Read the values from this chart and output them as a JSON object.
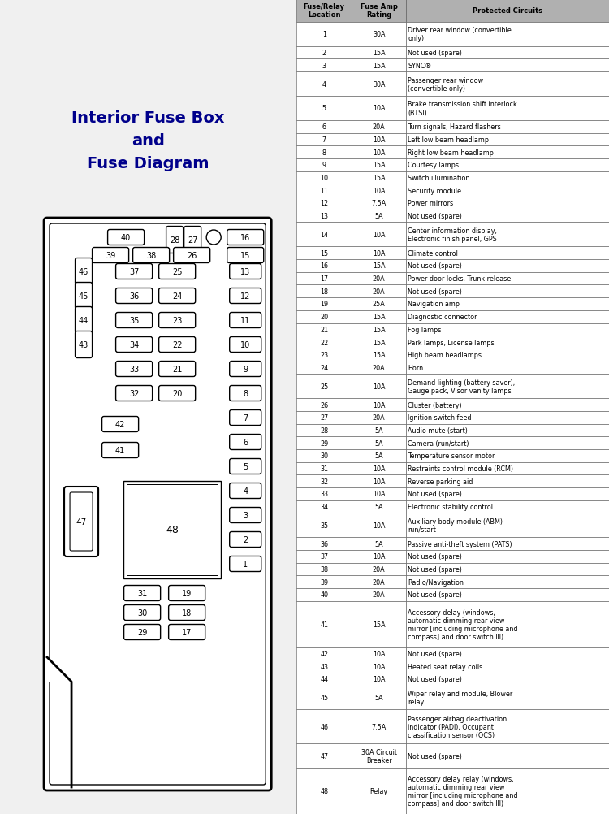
{
  "title": "Interior Fuse Box\nand\nFuse Diagram",
  "title_color": "#00008B",
  "bg_color": "#f0f0f0",
  "table_header": [
    "Fuse/Relay\nLocation",
    "Fuse Amp\nRating",
    "Protected Circuits"
  ],
  "header_bg": "#b0b0b0",
  "rows": [
    [
      "1",
      "30A",
      "Driver rear window (convertible\nonly)"
    ],
    [
      "2",
      "15A",
      "Not used (spare)"
    ],
    [
      "3",
      "15A",
      "SYNC®"
    ],
    [
      "4",
      "30A",
      "Passenger rear window\n(convertible only)"
    ],
    [
      "5",
      "10A",
      "Brake transmission shift interlock\n(BTSI)"
    ],
    [
      "6",
      "20A",
      "Turn signals, Hazard flashers"
    ],
    [
      "7",
      "10A",
      "Left low beam headlamp"
    ],
    [
      "8",
      "10A",
      "Right low beam headlamp"
    ],
    [
      "9",
      "15A",
      "Courtesy lamps"
    ],
    [
      "10",
      "15A",
      "Switch illumination"
    ],
    [
      "11",
      "10A",
      "Security module"
    ],
    [
      "12",
      "7.5A",
      "Power mirrors"
    ],
    [
      "13",
      "5A",
      "Not used (spare)"
    ],
    [
      "14",
      "10A",
      "Center information display,\nElectronic finish panel, GPS"
    ],
    [
      "15",
      "10A",
      "Climate control"
    ],
    [
      "16",
      "15A",
      "Not used (spare)"
    ],
    [
      "17",
      "20A",
      "Power door locks, Trunk release"
    ],
    [
      "18",
      "20A",
      "Not used (spare)"
    ],
    [
      "19",
      "25A",
      "Navigation amp"
    ],
    [
      "20",
      "15A",
      "Diagnostic connector"
    ],
    [
      "21",
      "15A",
      "Fog lamps"
    ],
    [
      "22",
      "15A",
      "Park lamps, License lamps"
    ],
    [
      "23",
      "15A",
      "High beam headlamps"
    ],
    [
      "24",
      "20A",
      "Horn"
    ],
    [
      "25",
      "10A",
      "Demand lighting (battery saver),\nGauge pack, Visor vanity lamps"
    ],
    [
      "26",
      "10A",
      "Cluster (battery)"
    ],
    [
      "27",
      "20A",
      "Ignition switch feed"
    ],
    [
      "28",
      "5A",
      "Audio mute (start)"
    ],
    [
      "29",
      "5A",
      "Camera (run/start)"
    ],
    [
      "30",
      "5A",
      "Temperature sensor motor"
    ],
    [
      "31",
      "10A",
      "Restraints control module (RCM)"
    ],
    [
      "32",
      "10A",
      "Reverse parking aid"
    ],
    [
      "33",
      "10A",
      "Not used (spare)"
    ],
    [
      "34",
      "5A",
      "Electronic stability control"
    ],
    [
      "35",
      "10A",
      "Auxiliary body module (ABM)\nrun/start"
    ],
    [
      "36",
      "5A",
      "Passive anti-theft system (PATS)"
    ],
    [
      "37",
      "10A",
      "Not used (spare)"
    ],
    [
      "38",
      "20A",
      "Not used (spare)"
    ],
    [
      "39",
      "20A",
      "Radio/Navigation"
    ],
    [
      "40",
      "20A",
      "Not used (spare)"
    ],
    [
      "41",
      "15A",
      "Accessory delay (windows,\nautomatic dimming rear view\nmirror [including microphone and\ncompass] and door switch III)"
    ],
    [
      "42",
      "10A",
      "Not used (spare)"
    ],
    [
      "43",
      "10A",
      "Heated seat relay coils"
    ],
    [
      "44",
      "10A",
      "Not used (spare)"
    ],
    [
      "45",
      "5A",
      "Wiper relay and module, Blower\nrelay"
    ],
    [
      "46",
      "7.5A",
      "Passenger airbag deactivation\nindicator (PADI), Occupant\nclassification sensor (OCS)"
    ],
    [
      "47",
      "30A Circuit\nBreaker",
      "Not used (spare)"
    ],
    [
      "48",
      "Relay",
      "Accessory delay relay (windows,\nautomatic dimming rear view\nmirror [including microphone and\ncompass] and door switch III)"
    ]
  ]
}
